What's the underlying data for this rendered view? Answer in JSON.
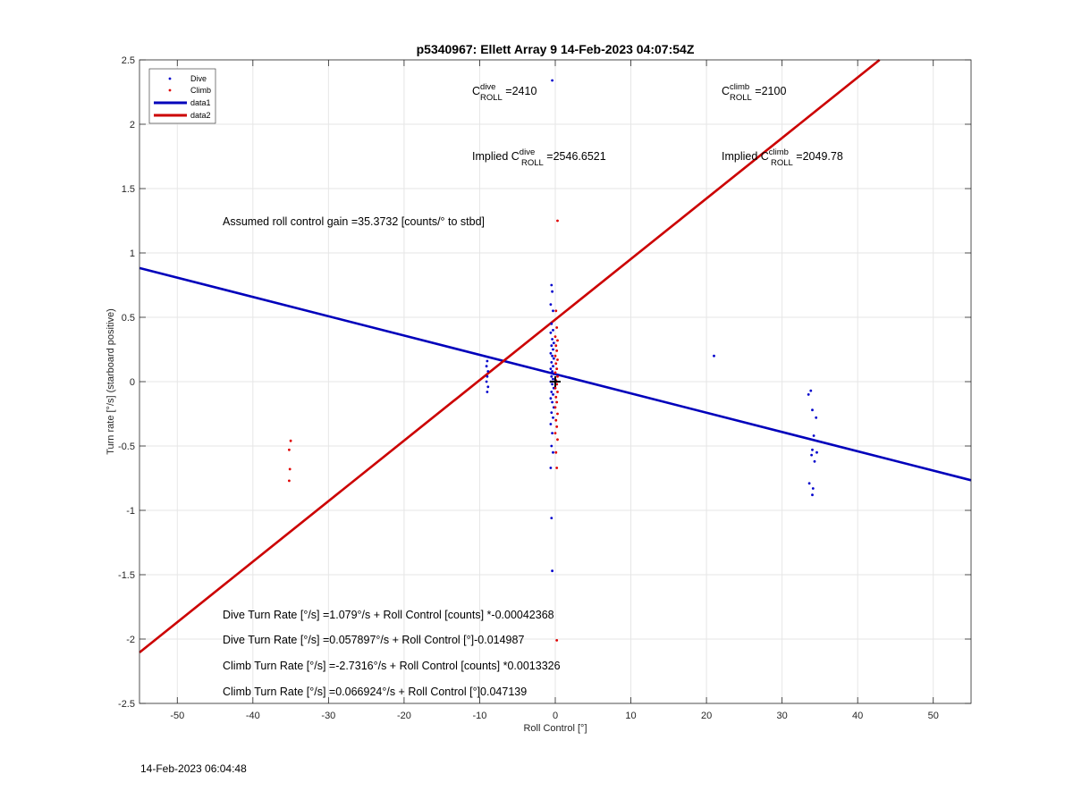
{
  "chart_data": {
    "type": "scatter",
    "title": "p5340967: Ellett Array 9 14-Feb-2023 04:07:54Z",
    "xlabel": "Roll Control [°]",
    "ylabel": "Turn rate [°/s] (starboard positive)",
    "xlim": [
      -55,
      55
    ],
    "ylim": [
      -2.5,
      2.5
    ],
    "xticks": [
      -50,
      -40,
      -30,
      -20,
      -10,
      0,
      10,
      20,
      30,
      40,
      50
    ],
    "yticks": [
      -2.5,
      -2,
      -1.5,
      -1,
      -0.5,
      0,
      0.5,
      1,
      1.5,
      2,
      2.5
    ],
    "grid": true,
    "legend_location": "top-left",
    "series": [
      {
        "name": "Dive",
        "kind": "points",
        "color": "#0000cc",
        "points": [
          [
            -0.4,
            2.34
          ],
          [
            -0.5,
            0.75
          ],
          [
            -0.4,
            0.7
          ],
          [
            -0.6,
            0.6
          ],
          [
            -0.3,
            0.55
          ],
          [
            -0.5,
            0.45
          ],
          [
            -0.3,
            0.4
          ],
          [
            -0.6,
            0.38
          ],
          [
            -0.4,
            0.33
          ],
          [
            -0.2,
            0.3
          ],
          [
            -0.5,
            0.28
          ],
          [
            -0.3,
            0.25
          ],
          [
            -0.6,
            0.22
          ],
          [
            -0.4,
            0.2
          ],
          [
            -0.2,
            0.18
          ],
          [
            -0.5,
            0.15
          ],
          [
            -0.3,
            0.12
          ],
          [
            -0.6,
            0.1
          ],
          [
            -0.4,
            0.08
          ],
          [
            -0.2,
            0.06
          ],
          [
            -0.5,
            0.04
          ],
          [
            -0.3,
            0.02
          ],
          [
            -0.6,
            0.0
          ],
          [
            -0.4,
            -0.02
          ],
          [
            -0.2,
            -0.05
          ],
          [
            -0.5,
            -0.08
          ],
          [
            -0.3,
            -0.1
          ],
          [
            -0.6,
            -0.13
          ],
          [
            -0.4,
            -0.16
          ],
          [
            -0.2,
            -0.2
          ],
          [
            -0.5,
            -0.24
          ],
          [
            -0.3,
            -0.28
          ],
          [
            -0.6,
            -0.33
          ],
          [
            -0.4,
            -0.4
          ],
          [
            -0.5,
            -0.5
          ],
          [
            -0.3,
            -0.55
          ],
          [
            -0.6,
            -0.67
          ],
          [
            -0.5,
            -1.06
          ],
          [
            -0.4,
            -1.47
          ],
          [
            -9.0,
            0.16
          ],
          [
            -9.1,
            0.12
          ],
          [
            -8.9,
            0.08
          ],
          [
            -9.0,
            0.04
          ],
          [
            -9.1,
            0.0
          ],
          [
            -8.9,
            -0.04
          ],
          [
            -9.0,
            -0.08
          ],
          [
            21.0,
            0.2
          ],
          [
            33.8,
            -0.07
          ],
          [
            33.5,
            -0.1
          ],
          [
            34.0,
            -0.22
          ],
          [
            34.5,
            -0.28
          ],
          [
            34.2,
            -0.42
          ],
          [
            34.0,
            -0.53
          ],
          [
            34.6,
            -0.55
          ],
          [
            33.9,
            -0.57
          ],
          [
            34.3,
            -0.62
          ],
          [
            33.6,
            -0.79
          ],
          [
            34.1,
            -0.83
          ],
          [
            34.0,
            -0.88
          ]
        ]
      },
      {
        "name": "Climb",
        "kind": "points",
        "color": "#e00000",
        "points": [
          [
            0.3,
            1.25
          ],
          [
            0.1,
            0.55
          ],
          [
            0.2,
            0.42
          ],
          [
            0.0,
            0.35
          ],
          [
            0.3,
            0.32
          ],
          [
            0.1,
            0.28
          ],
          [
            0.2,
            0.24
          ],
          [
            0.0,
            0.2
          ],
          [
            0.3,
            0.17
          ],
          [
            0.1,
            0.14
          ],
          [
            0.2,
            0.1
          ],
          [
            0.0,
            0.07
          ],
          [
            0.3,
            0.04
          ],
          [
            0.1,
            0.01
          ],
          [
            0.2,
            -0.02
          ],
          [
            0.0,
            -0.05
          ],
          [
            0.3,
            -0.08
          ],
          [
            0.1,
            -0.12
          ],
          [
            0.2,
            -0.16
          ],
          [
            0.0,
            -0.2
          ],
          [
            0.3,
            -0.25
          ],
          [
            0.1,
            -0.3
          ],
          [
            0.2,
            -0.35
          ],
          [
            0.0,
            -0.4
          ],
          [
            0.3,
            -0.45
          ],
          [
            0.1,
            -0.55
          ],
          [
            0.2,
            -0.67
          ],
          [
            0.2,
            -2.01
          ],
          [
            -35.0,
            -0.46
          ],
          [
            -35.2,
            -0.53
          ],
          [
            -35.1,
            -0.68
          ],
          [
            -35.2,
            -0.77
          ]
        ]
      },
      {
        "name": "data1",
        "kind": "line",
        "color": "#0000bb",
        "x": [
          -55,
          55
        ],
        "y": [
          0.883,
          -0.766
        ]
      },
      {
        "name": "data2",
        "kind": "line",
        "color": "#cc0000",
        "x": [
          -55,
          42.9
        ],
        "y": [
          -2.104,
          2.5
        ]
      }
    ],
    "center_marker": {
      "x": 0,
      "y": 0,
      "symbol": "+",
      "color": "#000000"
    }
  },
  "annotations": {
    "c_dive_prefix": "C",
    "c_dive_sup": "dive",
    "c_dive_sub": "ROLL",
    "c_dive_value": " =2410",
    "c_climb_prefix": "C",
    "c_climb_sup": "climb",
    "c_climb_sub": "ROLL",
    "c_climb_value": " =2100",
    "implied_dive_prefix": "Implied C",
    "implied_dive_sup": "dive",
    "implied_dive_sub": "ROLL",
    "implied_dive_value": " =2546.6521",
    "implied_climb_prefix": "Implied C",
    "implied_climb_sup": "climb",
    "implied_climb_sub": "ROLL",
    "implied_climb_value": " =2049.78",
    "gain": "Assumed roll control gain =35.3732 [counts/° to stbd]",
    "fit_lines": [
      "Dive Turn Rate [°/s] =1.079°/s + Roll Control [counts] *-0.00042368",
      "Dive Turn Rate [°/s] =0.057897°/s + Roll Control [°]-0.014987",
      "Climb Turn Rate [°/s] =-2.7316°/s + Roll Control [counts] *0.0013326",
      "Climb Turn Rate [°/s] =0.066924°/s + Roll Control [°]0.047139"
    ]
  },
  "footer": {
    "timestamp": "14-Feb-2023 06:04:48"
  }
}
